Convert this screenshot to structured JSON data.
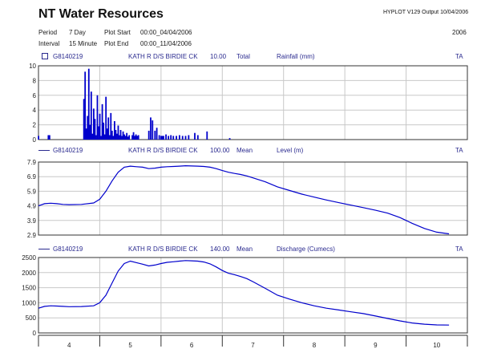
{
  "header": {
    "title": "NT Water Resources",
    "software": "HYPLOT V129  Output 10/04/2006",
    "year": "2006",
    "period_label": "Period",
    "period_value": "7 Day",
    "interval_label": "Interval",
    "interval_value": "15 Minute",
    "plot_start_label": "Plot Start",
    "plot_start_value": "00:00_04/04/2006",
    "plot_end_label": "Plot End",
    "plot_end_value": "00:00_11/04/2006"
  },
  "colors": {
    "series": "#0000cc",
    "grid": "#c8c8c8",
    "header_text": "#2a2a8f"
  },
  "x_axis": {
    "day_ticks": [
      "4",
      "5",
      "6",
      "7",
      "8",
      "9",
      "10"
    ],
    "range_days": [
      3.5,
      10.5
    ]
  },
  "chart_data": [
    {
      "type": "bar",
      "site": "G8140219",
      "station": "KATH R D/S BIRDIE CK",
      "var_code": "10.00",
      "stat": "Total",
      "variable": "Rainfall (mm)",
      "flag": "TA",
      "legend_icon": "square-icon",
      "ylim": [
        0,
        10
      ],
      "yticks": [
        "0",
        "2",
        "4",
        "6",
        "8",
        "10"
      ],
      "x": [
        3.5,
        3.66,
        3.68,
        4.24,
        4.26,
        4.28,
        4.3,
        4.32,
        4.34,
        4.36,
        4.38,
        4.4,
        4.42,
        4.44,
        4.46,
        4.48,
        4.5,
        4.52,
        4.54,
        4.56,
        4.58,
        4.6,
        4.62,
        4.64,
        4.66,
        4.68,
        4.7,
        4.72,
        4.74,
        4.76,
        4.78,
        4.8,
        4.82,
        4.84,
        4.86,
        4.88,
        4.9,
        4.92,
        4.94,
        4.96,
        4.98,
        5.03,
        5.05,
        5.07,
        5.09,
        5.11,
        5.13,
        5.3,
        5.33,
        5.36,
        5.4,
        5.43,
        5.47,
        5.5,
        5.52,
        5.54,
        5.58,
        5.62,
        5.66,
        5.7,
        5.75,
        5.8,
        5.85,
        5.9,
        5.95,
        6.05,
        6.1,
        6.25,
        6.62
      ],
      "values": [
        0.5,
        0.6,
        0.6,
        5.5,
        9.2,
        1.5,
        3.2,
        9.6,
        2.0,
        6.5,
        0.8,
        4.2,
        2.8,
        0.6,
        6.0,
        1.8,
        3.5,
        0.5,
        4.8,
        2.3,
        0.7,
        5.8,
        1.5,
        3.0,
        0.6,
        3.6,
        1.2,
        0.5,
        2.5,
        1.3,
        0.8,
        1.9,
        0.6,
        1.3,
        0.5,
        1.1,
        0.7,
        0.5,
        0.9,
        0.4,
        0.6,
        0.6,
        1.0,
        0.5,
        0.7,
        0.5,
        0.6,
        1.2,
        3.0,
        2.6,
        1.2,
        1.6,
        0.6,
        0.5,
        0.5,
        0.5,
        0.7,
        0.5,
        0.6,
        0.5,
        0.5,
        0.6,
        0.5,
        0.5,
        0.6,
        0.9,
        0.6,
        1.1,
        0.2
      ]
    },
    {
      "type": "line",
      "site": "G8140219",
      "station": "KATH R D/S BIRDIE CK",
      "var_code": "100.00",
      "stat": "Mean",
      "variable": "Level (m)",
      "flag": "TA",
      "legend_icon": "line-icon",
      "ylim": [
        2.9,
        7.9
      ],
      "yticks": [
        "2.9",
        "3.9",
        "4.9",
        "5.9",
        "6.9",
        "7.9"
      ],
      "x": [
        3.5,
        3.6,
        3.7,
        3.8,
        3.9,
        4.0,
        4.2,
        4.4,
        4.5,
        4.6,
        4.7,
        4.8,
        4.9,
        5.0,
        5.1,
        5.2,
        5.3,
        5.4,
        5.5,
        5.6,
        5.7,
        5.8,
        5.9,
        6.0,
        6.1,
        6.2,
        6.3,
        6.4,
        6.5,
        6.6,
        6.7,
        6.8,
        6.9,
        7.0,
        7.2,
        7.4,
        7.6,
        7.8,
        8.0,
        8.2,
        8.4,
        8.6,
        8.8,
        9.0,
        9.2,
        9.4,
        9.6,
        9.8,
        10.0,
        10.2
      ],
      "values": [
        4.9,
        5.05,
        5.08,
        5.05,
        5.0,
        4.98,
        5.0,
        5.1,
        5.35,
        5.9,
        6.6,
        7.2,
        7.55,
        7.62,
        7.58,
        7.55,
        7.45,
        7.48,
        7.55,
        7.58,
        7.6,
        7.62,
        7.65,
        7.63,
        7.62,
        7.6,
        7.55,
        7.45,
        7.32,
        7.2,
        7.12,
        7.05,
        6.95,
        6.82,
        6.55,
        6.2,
        5.95,
        5.7,
        5.5,
        5.3,
        5.12,
        4.95,
        4.78,
        4.6,
        4.4,
        4.1,
        3.7,
        3.35,
        3.1,
        2.98
      ]
    },
    {
      "type": "line",
      "site": "G8140219",
      "station": "KATH R D/S BIRDIE CK",
      "var_code": "140.00",
      "stat": "Mean",
      "variable": "Discharge (Cumecs)",
      "flag": "TA",
      "legend_icon": "line-icon",
      "ylim": [
        0,
        2500
      ],
      "yticks": [
        "0",
        "500",
        "1000",
        "1500",
        "2000",
        "2500"
      ],
      "x": [
        3.5,
        3.6,
        3.7,
        3.8,
        3.9,
        4.0,
        4.2,
        4.4,
        4.5,
        4.6,
        4.7,
        4.8,
        4.9,
        5.0,
        5.1,
        5.2,
        5.3,
        5.4,
        5.5,
        5.6,
        5.7,
        5.8,
        5.9,
        6.0,
        6.1,
        6.2,
        6.3,
        6.4,
        6.5,
        6.6,
        6.7,
        6.8,
        6.9,
        7.0,
        7.2,
        7.4,
        7.6,
        7.8,
        8.0,
        8.2,
        8.4,
        8.6,
        8.8,
        9.0,
        9.2,
        9.4,
        9.6,
        9.8,
        10.0,
        10.2
      ],
      "values": [
        820,
        880,
        900,
        890,
        880,
        870,
        875,
        900,
        1000,
        1250,
        1650,
        2050,
        2300,
        2380,
        2330,
        2280,
        2220,
        2250,
        2300,
        2340,
        2360,
        2380,
        2400,
        2390,
        2380,
        2350,
        2290,
        2190,
        2070,
        1980,
        1930,
        1870,
        1800,
        1700,
        1480,
        1250,
        1120,
        1000,
        900,
        820,
        760,
        700,
        640,
        560,
        480,
        400,
        330,
        290,
        265,
        260
      ]
    }
  ]
}
